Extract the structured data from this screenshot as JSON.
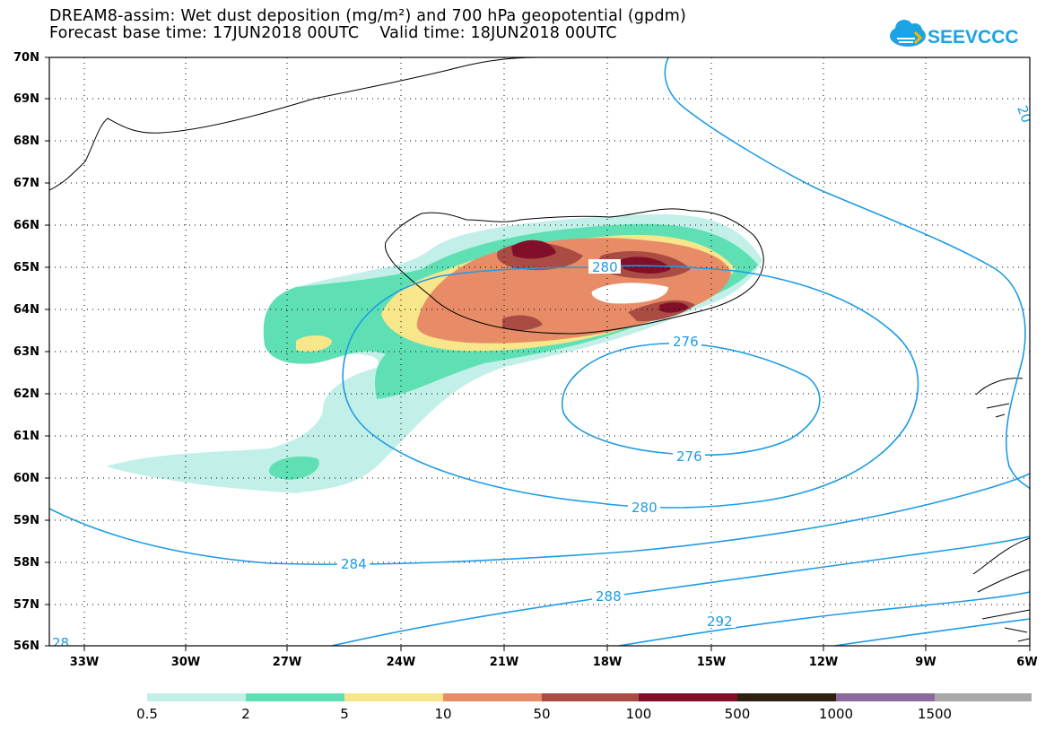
{
  "header": {
    "line1": "DREAM8-assim: Wet dust deposition (mg/m²) and 700 hPa geopotential (gpdm)",
    "line2": "Forecast base time: 17JUN2018 00UTC    Valid time: 18JUN2018 00UTC"
  },
  "logo": {
    "text": "SEEVCCC",
    "color": "#1ba3e3"
  },
  "map": {
    "lat_labels": [
      "70N",
      "69N",
      "68N",
      "67N",
      "66N",
      "65N",
      "64N",
      "63N",
      "62N",
      "61N",
      "60N",
      "59N",
      "58N",
      "57N",
      "56N"
    ],
    "lon_labels": [
      "33W",
      "30W",
      "27W",
      "24W",
      "21W",
      "18W",
      "15W",
      "12W",
      "9W",
      "6W"
    ],
    "contour_color": "#1e9be6",
    "contour_labels": [
      "280",
      "276",
      "276",
      "280",
      "284",
      "288",
      "292",
      "20",
      "28"
    ]
  },
  "colorbar": {
    "labels": [
      "0.5",
      "2",
      "5",
      "10",
      "50",
      "100",
      "500",
      "1000",
      "1500"
    ],
    "colors": [
      "#c2f0e8",
      "#5fe0b4",
      "#f8e68a",
      "#e88c68",
      "#aa4c44",
      "#820f2a",
      "#302010",
      "#8c6a9e",
      "#a8a8a8"
    ]
  }
}
